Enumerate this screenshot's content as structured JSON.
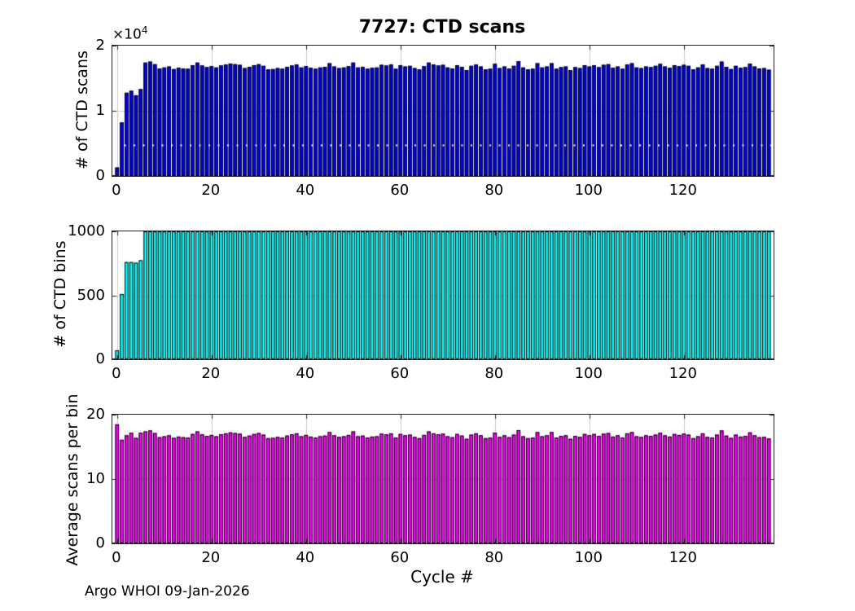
{
  "title": "7727: CTD scans",
  "footer": "Argo WHOI 09-Jan-2026",
  "colors": {
    "background": "#ffffff",
    "axis_box": "#222222",
    "grid": "#c9c9c9",
    "bar_edge": "#000000",
    "scans_bar": "#0000f5",
    "bins_bar": "#00ffff",
    "avg_bar": "#ff00ff",
    "dotted_overlay": "#ffffff"
  },
  "x_axis": {
    "label": "Cycle #",
    "tick_labels": [
      "0",
      "20",
      "40",
      "60",
      "80",
      "100",
      "120"
    ],
    "tick_values": [
      0,
      20,
      40,
      60,
      80,
      100,
      120
    ],
    "min": -1,
    "max": 139
  },
  "chart_data": [
    {
      "type": "bar",
      "title": "7727: CTD scans",
      "ylabel": "# of CTD scans",
      "offset_base": "×10",
      "offset_exp": "4",
      "ylim": [
        0,
        20000
      ],
      "ytick_labels": [
        "0",
        "1",
        "2"
      ],
      "ytick_values": [
        0,
        10000,
        20000
      ],
      "color": "#0000f5",
      "dotted_line_y": 4700,
      "x_start": 0,
      "values": [
        1295,
        8210,
        12770,
        13070,
        12380,
        13330,
        17400,
        17550,
        17150,
        16500,
        16650,
        16800,
        16400,
        16600,
        16500,
        16450,
        17000,
        17400,
        16950,
        16700,
        16850,
        16650,
        16950,
        17100,
        17250,
        17150,
        17050,
        16550,
        16750,
        17000,
        17150,
        16900,
        16350,
        16400,
        16550,
        16450,
        16750,
        16950,
        17100,
        16650,
        16850,
        16600,
        16450,
        16650,
        16750,
        17300,
        16800,
        16550,
        16650,
        16850,
        17400,
        16650,
        16750,
        16450,
        16600,
        16650,
        17050,
        16950,
        17100,
        16450,
        17000,
        16800,
        16900,
        16550,
        16350,
        16850,
        17400,
        17100,
        16950,
        17050,
        16650,
        16500,
        17000,
        16750,
        16250,
        16900,
        17100,
        16800,
        16350,
        16450,
        17200,
        16550,
        16800,
        16500,
        16900,
        17600,
        16650,
        16350,
        16450,
        17300,
        16650,
        16800,
        17300,
        16450,
        16700,
        16800,
        16250,
        16700,
        16550,
        17000,
        16800,
        17000,
        16700,
        17050,
        17150,
        16600,
        16800,
        16450,
        17100,
        17300,
        16650,
        16550,
        16800,
        16700,
        16900,
        17200,
        16800,
        16600,
        17000,
        16850,
        17050,
        16900,
        16350,
        16650,
        17100,
        16550,
        16450,
        16900,
        17550,
        16750,
        16400,
        16900,
        16600,
        16700,
        17250,
        16800,
        16500,
        16550,
        16300
      ]
    },
    {
      "type": "bar",
      "ylabel": "# of CTD bins",
      "ylim": [
        0,
        1000
      ],
      "ytick_labels": [
        "0",
        "500",
        "1000"
      ],
      "ytick_values": [
        0,
        500,
        1000
      ],
      "color": "#00ffff",
      "x_start": 0,
      "values": [
        70,
        510,
        760,
        760,
        755,
        775,
        1000,
        1000,
        1000,
        1000,
        1000,
        1000,
        1000,
        1000,
        1000,
        1000,
        1000,
        1000,
        1000,
        1000,
        1000,
        1000,
        1000,
        1000,
        1000,
        1000,
        1000,
        1000,
        1000,
        1000,
        1000,
        1000,
        1000,
        1000,
        1000,
        1000,
        1000,
        1000,
        1000,
        1000,
        1000,
        1000,
        1000,
        1000,
        1000,
        1000,
        1000,
        1000,
        1000,
        1000,
        1000,
        1000,
        1000,
        1000,
        1000,
        1000,
        1000,
        1000,
        1000,
        1000,
        1000,
        1000,
        1000,
        1000,
        1000,
        1000,
        1000,
        1000,
        1000,
        1000,
        1000,
        1000,
        1000,
        1000,
        1000,
        1000,
        1000,
        1000,
        1000,
        1000,
        1000,
        1000,
        1000,
        1000,
        1000,
        1000,
        1000,
        1000,
        1000,
        1000,
        1000,
        1000,
        1000,
        1000,
        1000,
        1000,
        1000,
        1000,
        1000,
        1000,
        1000,
        1000,
        1000,
        1000,
        1000,
        1000,
        1000,
        1000,
        1000,
        1000,
        1000,
        1000,
        1000,
        1000,
        1000,
        1000,
        1000,
        1000,
        1000,
        1000,
        1000,
        1000,
        1000,
        1000,
        1000,
        1000,
        1000,
        1000,
        1000,
        1000,
        1000,
        1000,
        1000,
        1000,
        1000,
        1000,
        1000,
        1000,
        1000
      ]
    },
    {
      "type": "bar",
      "ylabel": "Average scans per bin",
      "xlabel": "Cycle #",
      "ylim": [
        0,
        20
      ],
      "ytick_labels": [
        "0",
        "10",
        "20"
      ],
      "ytick_values": [
        0,
        10,
        20
      ],
      "color": "#ff00ff",
      "x_start": 0,
      "values": [
        18.5,
        16.1,
        16.8,
        17.2,
        16.4,
        17.2,
        17.4,
        17.55,
        17.15,
        16.5,
        16.65,
        16.8,
        16.4,
        16.6,
        16.5,
        16.45,
        17.0,
        17.4,
        16.95,
        16.7,
        16.85,
        16.65,
        16.95,
        17.1,
        17.25,
        17.15,
        17.05,
        16.55,
        16.75,
        17.0,
        17.15,
        16.9,
        16.35,
        16.4,
        16.55,
        16.45,
        16.75,
        16.95,
        17.1,
        16.65,
        16.85,
        16.6,
        16.45,
        16.65,
        16.75,
        17.3,
        16.8,
        16.55,
        16.65,
        16.85,
        17.4,
        16.65,
        16.75,
        16.45,
        16.6,
        16.65,
        17.05,
        16.95,
        17.1,
        16.45,
        17.0,
        16.8,
        16.9,
        16.55,
        16.35,
        16.85,
        17.4,
        17.1,
        16.95,
        17.05,
        16.65,
        16.5,
        17.0,
        16.75,
        16.25,
        16.9,
        17.1,
        16.8,
        16.35,
        16.45,
        17.2,
        16.55,
        16.8,
        16.5,
        16.9,
        17.6,
        16.65,
        16.35,
        16.45,
        17.3,
        16.65,
        16.8,
        17.3,
        16.45,
        16.7,
        16.8,
        16.25,
        16.7,
        16.55,
        17.0,
        16.8,
        17.0,
        16.7,
        17.05,
        17.15,
        16.6,
        16.8,
        16.45,
        17.1,
        17.3,
        16.65,
        16.55,
        16.8,
        16.7,
        16.9,
        17.2,
        16.8,
        16.6,
        17.0,
        16.85,
        17.05,
        16.9,
        16.35,
        16.65,
        17.1,
        16.55,
        16.45,
        16.9,
        17.55,
        16.75,
        16.4,
        16.9,
        16.6,
        16.7,
        17.25,
        16.8,
        16.5,
        16.55,
        16.3
      ]
    }
  ]
}
